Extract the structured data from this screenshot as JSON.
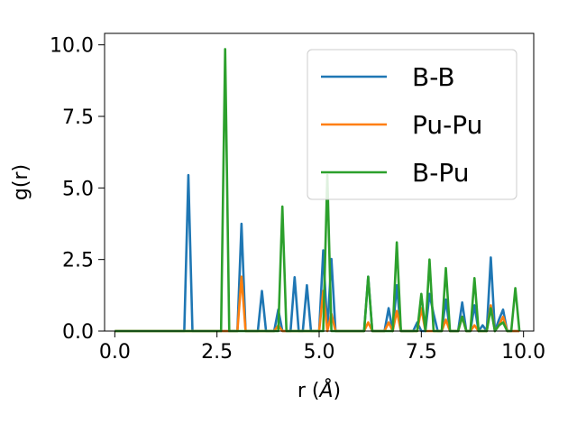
{
  "chart_data": {
    "type": "line",
    "title": "",
    "xlabel": "r (",
    "xlabel_unit": "Å",
    "xlabel_close": ")",
    "ylabel": "g(r)",
    "xlim": [
      -0.25,
      10.25
    ],
    "ylim": [
      0,
      10.4
    ],
    "xticks": [
      0.0,
      2.5,
      5.0,
      7.5,
      10.0
    ],
    "xtick_labels": [
      "0.0",
      "2.5",
      "5.0",
      "7.5",
      "10.0"
    ],
    "yticks": [
      0.0,
      2.5,
      5.0,
      7.5,
      10.0
    ],
    "ytick_labels": [
      "0.0",
      "2.5",
      "5.0",
      "7.5",
      "10.0"
    ],
    "grid": false,
    "legend_position": "top-right",
    "x_grid": {
      "start": 0.0,
      "step": 0.1,
      "count": 100
    },
    "series": [
      {
        "name": "B-B",
        "color": "#1f77b4",
        "values": [
          0,
          0,
          0,
          0,
          0,
          0,
          0,
          0,
          0,
          0,
          0,
          0,
          0,
          0,
          0,
          0,
          0,
          0,
          5.45,
          0,
          0,
          0,
          0,
          0,
          0,
          0,
          0,
          0,
          0,
          0,
          0,
          3.75,
          0,
          0,
          0,
          0,
          1.4,
          0,
          0,
          0,
          0.75,
          0,
          0,
          0,
          1.88,
          0,
          0,
          1.6,
          0,
          0,
          0,
          2.82,
          0,
          2.52,
          0,
          0,
          0,
          0,
          0,
          0,
          0,
          0,
          1.9,
          0,
          0,
          0,
          0,
          0.8,
          0,
          1.6,
          0,
          0,
          0,
          0,
          0.3,
          0,
          0,
          1.3,
          0.6,
          0,
          0,
          1.1,
          0,
          0,
          0,
          1.0,
          0,
          0,
          0.9,
          0,
          0.2,
          0,
          2.57,
          0,
          0.4,
          0.75,
          0,
          0,
          0,
          0
        ]
      },
      {
        "name": "Pu-Pu",
        "color": "#ff7f0e",
        "values": [
          0,
          0,
          0,
          0,
          0,
          0,
          0,
          0,
          0,
          0,
          0,
          0,
          0,
          0,
          0,
          0,
          0,
          0,
          0,
          0,
          0,
          0,
          0,
          0,
          0,
          0,
          0,
          0,
          0,
          0,
          0,
          1.9,
          0,
          0,
          0,
          0,
          0,
          0,
          0,
          0,
          0.2,
          0,
          0,
          0,
          0,
          0,
          0,
          0,
          0,
          0,
          0,
          1.4,
          0,
          0.6,
          0,
          0,
          0,
          0,
          0,
          0,
          0,
          0,
          0.3,
          0,
          0,
          0,
          0,
          0.3,
          0,
          0.7,
          0,
          0,
          0,
          0,
          0,
          0.8,
          0,
          0,
          0,
          0,
          0,
          0.4,
          0,
          0,
          0,
          0.5,
          0,
          0,
          0.2,
          0,
          0,
          0,
          0.9,
          0,
          0.2,
          0.5,
          0,
          0,
          0,
          0
        ]
      },
      {
        "name": "B-Pu",
        "color": "#2ca02c",
        "values": [
          0,
          0,
          0,
          0,
          0,
          0,
          0,
          0,
          0,
          0,
          0,
          0,
          0,
          0,
          0,
          0,
          0,
          0,
          0,
          0,
          0,
          0,
          0,
          0,
          0,
          0,
          0,
          9.85,
          0,
          0,
          0,
          0,
          0,
          0,
          0,
          0,
          0,
          0,
          0,
          0,
          0,
          4.35,
          0,
          0,
          0,
          0,
          0,
          0,
          0,
          0,
          0,
          0,
          5.45,
          0,
          0,
          0,
          0,
          0,
          0,
          0,
          0,
          0,
          1.9,
          0,
          0,
          0,
          0,
          0,
          0,
          3.1,
          0,
          0,
          0,
          0,
          0,
          1.3,
          0,
          2.5,
          0,
          0,
          0,
          2.2,
          0,
          0,
          0,
          0.5,
          0,
          0,
          1.85,
          0,
          0,
          0,
          0.8,
          0,
          0.2,
          0.3,
          0,
          0,
          1.5,
          0
        ]
      }
    ]
  }
}
